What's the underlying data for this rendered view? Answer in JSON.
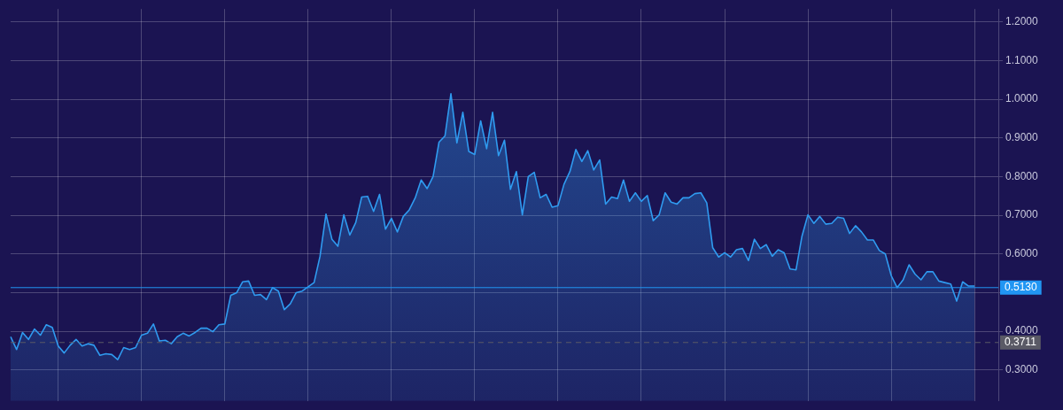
{
  "chart_data": {
    "type": "area",
    "categories": [
      null,
      null,
      null,
      null,
      null,
      null,
      null,
      null,
      null,
      null,
      null,
      null,
      null,
      null,
      null,
      null,
      null,
      null,
      null,
      null,
      null,
      null,
      null,
      null,
      null,
      null,
      null,
      null,
      null,
      null,
      null,
      null,
      null,
      null,
      null,
      null,
      null,
      null,
      null,
      null,
      null,
      null,
      null,
      null,
      null,
      null,
      null,
      null,
      null,
      null,
      null,
      null,
      null,
      null,
      null,
      null,
      null,
      null,
      null,
      null,
      null,
      null,
      null,
      null,
      null,
      null,
      null,
      null,
      null,
      null,
      null,
      null,
      null,
      null,
      null,
      null,
      null,
      null,
      null,
      null,
      null,
      null,
      null,
      null,
      null,
      null,
      null,
      null,
      null,
      null,
      null,
      null,
      null,
      null,
      null,
      null,
      null,
      null,
      null,
      null,
      null,
      null,
      null,
      null,
      null,
      null,
      null,
      null,
      null,
      null,
      null,
      null,
      null,
      null,
      null,
      null,
      null,
      null,
      null,
      null,
      null,
      null,
      null,
      null,
      null,
      null,
      null,
      null,
      null,
      null,
      null,
      null,
      null,
      null,
      null,
      null,
      null,
      null,
      null,
      null,
      null,
      null,
      null,
      null,
      null,
      null,
      null,
      null,
      null,
      null,
      null,
      null,
      null,
      null,
      null,
      null,
      null,
      null,
      null,
      null,
      null,
      null,
      null,
      null,
      null,
      null,
      null
    ],
    "series": [
      {
        "color": "#2f9bf0",
        "values": [
          0.386,
          0.353,
          0.397,
          0.379,
          0.406,
          0.39,
          0.417,
          0.41,
          0.362,
          0.344,
          0.364,
          0.379,
          0.362,
          0.368,
          0.364,
          0.338,
          0.342,
          0.34,
          0.327,
          0.358,
          0.353,
          0.358,
          0.39,
          0.395,
          0.419,
          0.375,
          0.377,
          0.368,
          0.386,
          0.395,
          0.388,
          0.397,
          0.408,
          0.408,
          0.399,
          0.417,
          0.419,
          0.493,
          0.5,
          0.528,
          0.53,
          0.493,
          0.495,
          0.482,
          0.513,
          0.504,
          0.456,
          0.471,
          0.5,
          0.504,
          0.515,
          0.526,
          0.594,
          0.703,
          0.638,
          0.62,
          0.701,
          0.649,
          0.681,
          0.747,
          0.749,
          0.71,
          0.754,
          0.664,
          0.692,
          0.657,
          0.697,
          0.714,
          0.745,
          0.791,
          0.769,
          0.8,
          0.889,
          0.905,
          1.014,
          0.887,
          0.966,
          0.865,
          0.857,
          0.944,
          0.872,
          0.966,
          0.854,
          0.894,
          0.767,
          0.813,
          0.701,
          0.8,
          0.811,
          0.745,
          0.754,
          0.721,
          0.725,
          0.78,
          0.813,
          0.87,
          0.839,
          0.867,
          0.817,
          0.843,
          0.729,
          0.747,
          0.743,
          0.791,
          0.736,
          0.758,
          0.736,
          0.751,
          0.686,
          0.701,
          0.758,
          0.734,
          0.729,
          0.745,
          0.745,
          0.756,
          0.758,
          0.732,
          0.616,
          0.592,
          0.603,
          0.592,
          0.611,
          0.614,
          0.583,
          0.638,
          0.614,
          0.624,
          0.594,
          0.611,
          0.603,
          0.561,
          0.559,
          0.646,
          0.701,
          0.679,
          0.697,
          0.677,
          0.679,
          0.695,
          0.692,
          0.653,
          0.673,
          0.657,
          0.636,
          0.636,
          0.609,
          0.6,
          0.544,
          0.513,
          0.533,
          0.572,
          0.548,
          0.533,
          0.554,
          0.554,
          0.53,
          0.526,
          0.522,
          0.478,
          0.528,
          0.517,
          0.517,
          null,
          null,
          null,
          null
        ]
      }
    ],
    "ylim": [
      0.22,
      1.233
    ],
    "yticks": [
      {
        "value": 0.3,
        "label": "0.3000"
      },
      {
        "value": 0.4,
        "label": "0.4000"
      },
      {
        "value": 0.5,
        "label": null
      },
      {
        "value": 0.6,
        "label": "0.6000"
      },
      {
        "value": 0.7,
        "label": "0.7000"
      },
      {
        "value": 0.8,
        "label": "0.8000"
      },
      {
        "value": 0.9,
        "label": "0.9000"
      },
      {
        "value": 1.0,
        "label": "1.0000"
      },
      {
        "value": 1.1,
        "label": "1.1000"
      },
      {
        "value": 1.2,
        "label": "1.2000"
      }
    ],
    "ref_lines": [
      {
        "axis": "y",
        "value": 0.513,
        "label": "0.5130",
        "color": "#2196f3",
        "line_style": "solid"
      },
      {
        "axis": "y",
        "value": 0.3711,
        "label": "0.3711",
        "color": "#5a5a66",
        "line_style": "dashed"
      }
    ],
    "grid": true,
    "legend": false,
    "marker": "none",
    "line_style": "solid",
    "tick_labels": "y"
  }
}
